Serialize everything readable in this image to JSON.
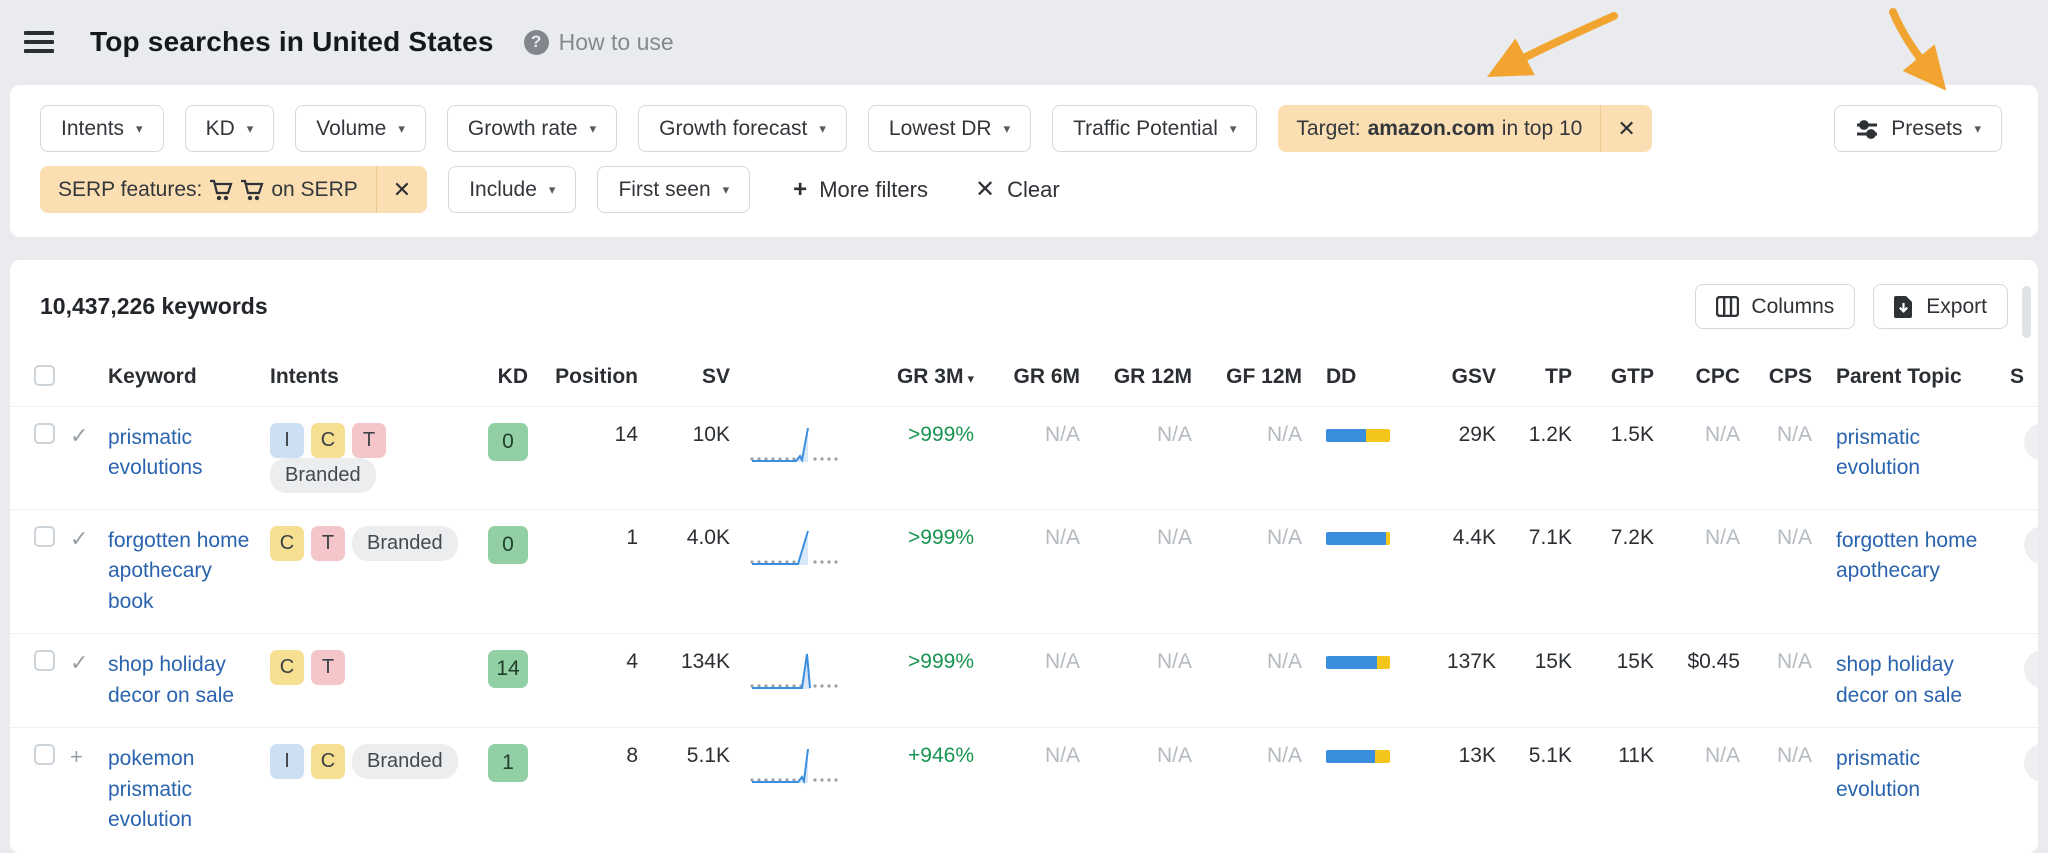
{
  "icons": {
    "caret": "▾",
    "close": "✕",
    "plus": "+",
    "check": "✓",
    "question": "?",
    "sort_caret": "▾",
    "more_plus": "+",
    "clear_x": "✕"
  },
  "colors": {
    "chip_orange": "#fbdfb3",
    "link_blue": "#2a63ae",
    "growth_green": "#17944f",
    "dd_blue": "#3a8edd",
    "dd_yellow": "#f4c51a",
    "kd_green": "#92cfa4",
    "arrow_orange": "#f2a431",
    "na_gray": "#b4bac0"
  },
  "header": {
    "title": "Top searches in United States",
    "help_label": "How to use"
  },
  "filters": {
    "row1_buttons": [
      "Intents",
      "KD",
      "Volume",
      "Growth rate",
      "Growth forecast",
      "Lowest DR",
      "Traffic Potential"
    ],
    "target_chip": {
      "prefix": "Target:",
      "domain": "amazon.com",
      "suffix": "in top 10"
    },
    "presets_label": "Presets",
    "serp_chip": {
      "prefix": "SERP features:",
      "suffix": "on SERP"
    },
    "row2_buttons": [
      "Include",
      "First seen"
    ],
    "more_filters_label": "More filters",
    "clear_label": "Clear"
  },
  "toolbar": {
    "keywords_count": "10,437,226 keywords",
    "columns_label": "Columns",
    "export_label": "Export"
  },
  "table": {
    "columns": [
      "Keyword",
      "Intents",
      "KD",
      "Position",
      "SV",
      "GR 3M",
      "GR 6M",
      "GR 12M",
      "GF 12M",
      "DD",
      "GSV",
      "TP",
      "GTP",
      "CPC",
      "CPS",
      "Parent Topic",
      "S"
    ],
    "sorted_column": "GR 3M",
    "rows": [
      {
        "keyword": "prismatic evolutions",
        "row_state": "added",
        "intents": [
          "I",
          "C",
          "T"
        ],
        "branded": "Branded",
        "kd": "0",
        "position": "14",
        "sv": "10K",
        "gr3m": ">999%",
        "gr6m": "N/A",
        "gr12m": "N/A",
        "gf12m": "N/A",
        "dd_blue_pct": 62,
        "dd_yellow_pct": 38,
        "gsv": "29K",
        "tp": "1.2K",
        "gtp": "1.5K",
        "cpc": "N/A",
        "cps": "N/A",
        "parent_topic": "prismatic evolution"
      },
      {
        "keyword": "forgotten home apothecary book",
        "row_state": "added",
        "intents": [
          "C",
          "T"
        ],
        "branded": "Branded",
        "kd": "0",
        "position": "1",
        "sv": "4.0K",
        "gr3m": ">999%",
        "gr6m": "N/A",
        "gr12m": "N/A",
        "gf12m": "N/A",
        "dd_blue_pct": 93,
        "dd_yellow_pct": 7,
        "gsv": "4.4K",
        "tp": "7.1K",
        "gtp": "7.2K",
        "cpc": "N/A",
        "cps": "N/A",
        "parent_topic": "forgotten home apothecary"
      },
      {
        "keyword": "shop holiday decor on sale",
        "row_state": "added",
        "intents": [
          "C",
          "T"
        ],
        "branded": "",
        "kd": "14",
        "position": "4",
        "sv": "134K",
        "gr3m": ">999%",
        "gr6m": "N/A",
        "gr12m": "N/A",
        "gf12m": "N/A",
        "dd_blue_pct": 80,
        "dd_yellow_pct": 20,
        "gsv": "137K",
        "tp": "15K",
        "gtp": "15K",
        "cpc": "$0.45",
        "cps": "N/A",
        "parent_topic": "shop holiday decor on sale"
      },
      {
        "keyword": "pokemon prismatic evolution",
        "row_state": "addable",
        "intents": [
          "I",
          "C"
        ],
        "branded": "Branded",
        "kd": "1",
        "position": "8",
        "sv": "5.1K",
        "gr3m": "+946%",
        "gr6m": "N/A",
        "gr12m": "N/A",
        "gf12m": "N/A",
        "dd_blue_pct": 77,
        "dd_yellow_pct": 23,
        "gsv": "13K",
        "tp": "5.1K",
        "gtp": "11K",
        "cpc": "N/A",
        "cps": "N/A",
        "parent_topic": "prismatic evolution"
      }
    ]
  }
}
